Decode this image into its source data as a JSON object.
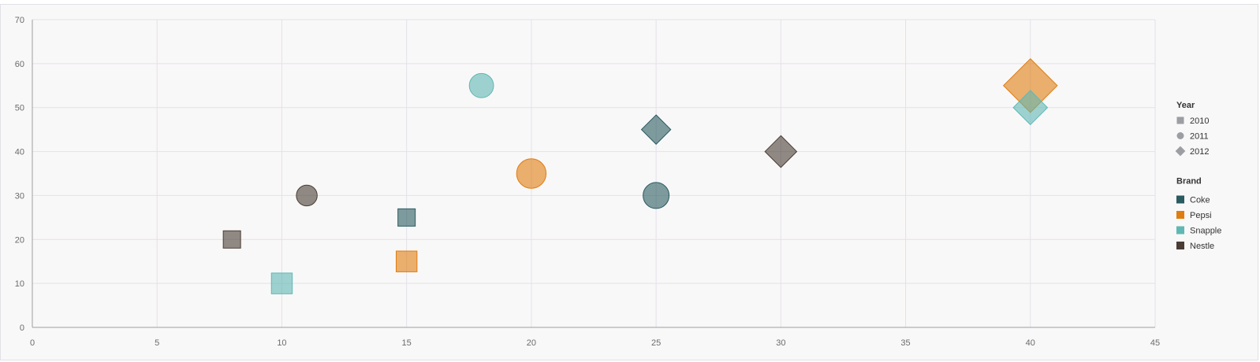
{
  "chart_data": {
    "type": "bubble",
    "xlim": [
      0,
      45
    ],
    "ylim": [
      0,
      70
    ],
    "x_ticks": [
      0,
      5,
      10,
      15,
      20,
      25,
      30,
      35,
      40,
      45
    ],
    "y_ticks": [
      0,
      10,
      20,
      30,
      40,
      50,
      60,
      70
    ],
    "grid": true,
    "legend_position": "right",
    "legend": {
      "year_title": "Year",
      "years": [
        {
          "label": "2010",
          "shape": "square"
        },
        {
          "label": "2011",
          "shape": "circle"
        },
        {
          "label": "2012",
          "shape": "diamond"
        }
      ],
      "brand_title": "Brand",
      "brands": [
        {
          "label": "Coke",
          "color": "#2a5b61"
        },
        {
          "label": "Pepsi",
          "color": "#e07d10"
        },
        {
          "label": "Snapple",
          "color": "#5fb8b4"
        },
        {
          "label": "Nestle",
          "color": "#4a3d36"
        }
      ]
    },
    "points": [
      {
        "brand": "Coke",
        "year": "2010",
        "x": 15,
        "y": 25,
        "size": 1.0
      },
      {
        "brand": "Coke",
        "year": "2011",
        "x": 25,
        "y": 30,
        "size": 1.5
      },
      {
        "brand": "Coke",
        "year": "2012",
        "x": 25,
        "y": 45,
        "size": 1.2
      },
      {
        "brand": "Pepsi",
        "year": "2010",
        "x": 15,
        "y": 15,
        "size": 1.2
      },
      {
        "brand": "Pepsi",
        "year": "2011",
        "x": 20,
        "y": 35,
        "size": 1.7
      },
      {
        "brand": "Pepsi",
        "year": "2012",
        "x": 40,
        "y": 55,
        "size": 2.2
      },
      {
        "brand": "Snapple",
        "year": "2010",
        "x": 10,
        "y": 10,
        "size": 1.2
      },
      {
        "brand": "Snapple",
        "year": "2011",
        "x": 18,
        "y": 55,
        "size": 1.4
      },
      {
        "brand": "Snapple",
        "year": "2012",
        "x": 40,
        "y": 50,
        "size": 1.4
      },
      {
        "brand": "Nestle",
        "year": "2010",
        "x": 8,
        "y": 20,
        "size": 1.0
      },
      {
        "brand": "Nestle",
        "year": "2011",
        "x": 11,
        "y": 30,
        "size": 1.2
      },
      {
        "brand": "Nestle",
        "year": "2012",
        "x": 30,
        "y": 40,
        "size": 1.3
      }
    ]
  }
}
